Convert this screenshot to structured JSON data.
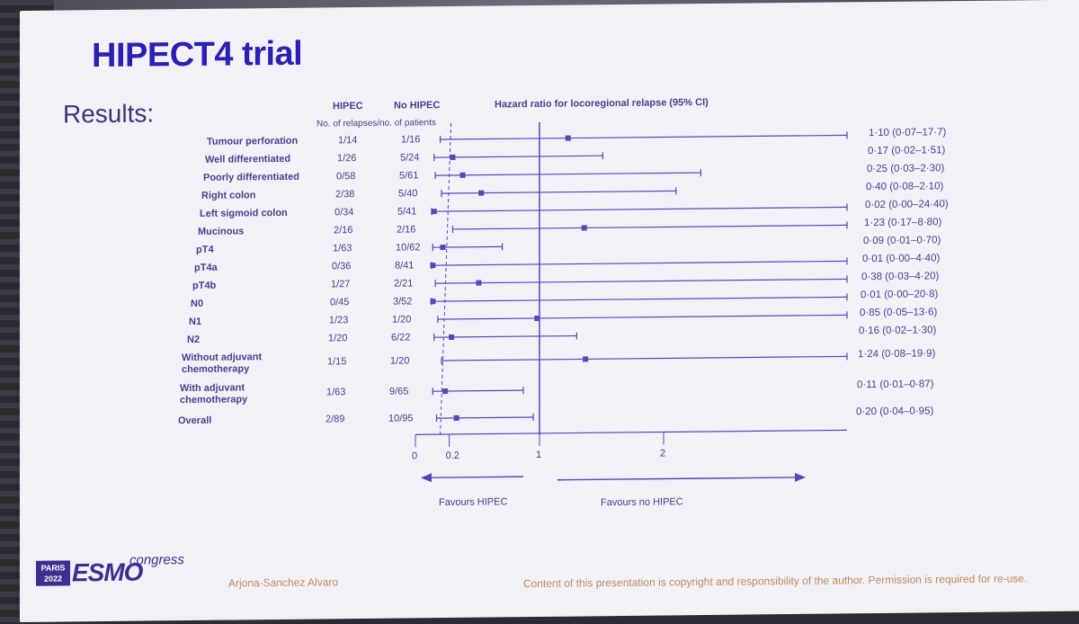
{
  "slide": {
    "title": "HIPECT4 trial",
    "subtitle": "Results:",
    "author": "Arjona-Sanchez Alvaro",
    "copyright": "Content of this presentation is copyright and responsibility of the author. Permission is required for re-use.",
    "logo": {
      "city_year": "PARIS 2022",
      "brand": "ESMO",
      "congress": "congress"
    }
  },
  "table": {
    "col_hipec": "HIPEC",
    "col_no_hipec": "No HIPEC",
    "col_sub": "No. of relapses/no. of patients",
    "col_hr": "Hazard ratio for locoregional relapse (95% CI)"
  },
  "chart_data": {
    "type": "forest",
    "title": "Hazard ratio for locoregional relapse (95% CI)",
    "xlabel": "",
    "x_ticks": [
      "0",
      "0.2",
      "1",
      "2"
    ],
    "xlim": [
      0,
      2.4
    ],
    "reference_line": 1,
    "dashed_line": 0.2,
    "favours_left": "Favours HIPEC",
    "favours_right": "Favours no HIPEC",
    "rows": [
      {
        "label": "Tumour perforation",
        "hipec": "1/14",
        "no_hipec": "1/16",
        "hr": 1.1,
        "lo": 0.07,
        "hi": 17.7,
        "ci_text": "1·10 (0·07–17·7)"
      },
      {
        "label": "Well differentiated",
        "hipec": "1/26",
        "no_hipec": "5/24",
        "hr": 0.17,
        "lo": 0.02,
        "hi": 1.51,
        "ci_text": "0·17 (0·02–1·51)"
      },
      {
        "label": "Poorly differentiated",
        "hipec": "0/58",
        "no_hipec": "5/61",
        "hr": 0.25,
        "lo": 0.03,
        "hi": 2.3,
        "ci_text": "0·25 (0·03–2·30)"
      },
      {
        "label": "Right colon",
        "hipec": "2/38",
        "no_hipec": "5/40",
        "hr": 0.4,
        "lo": 0.08,
        "hi": 2.1,
        "ci_text": "0·40 (0·08–2·10)"
      },
      {
        "label": "Left sigmoid colon",
        "hipec": "0/34",
        "no_hipec": "5/41",
        "hr": 0.02,
        "lo": 0.0,
        "hi": 24.4,
        "ci_text": "0·02 (0·00–24·40)"
      },
      {
        "label": "Mucinous",
        "hipec": "2/16",
        "no_hipec": "2/16",
        "hr": 1.23,
        "lo": 0.17,
        "hi": 8.8,
        "ci_text": "1·23 (0·17–8·80)"
      },
      {
        "label": "pT4",
        "hipec": "1/63",
        "no_hipec": "10/62",
        "hr": 0.09,
        "lo": 0.01,
        "hi": 0.7,
        "ci_text": "0·09 (0·01–0·70)"
      },
      {
        "label": "pT4a",
        "hipec": "0/36",
        "no_hipec": "8/41",
        "hr": 0.01,
        "lo": 0.0,
        "hi": 4.4,
        "ci_text": "0·01 (0·00–4·40)"
      },
      {
        "label": "pT4b",
        "hipec": "1/27",
        "no_hipec": "2/21",
        "hr": 0.38,
        "lo": 0.03,
        "hi": 4.2,
        "ci_text": "0·38 (0·03–4·20)"
      },
      {
        "label": "N0",
        "hipec": "0/45",
        "no_hipec": "3/52",
        "hr": 0.01,
        "lo": 0.0,
        "hi": 20.8,
        "ci_text": "0·01 (0·00–20·8)"
      },
      {
        "label": "N1",
        "hipec": "1/23",
        "no_hipec": "1/20",
        "hr": 0.85,
        "lo": 0.05,
        "hi": 13.6,
        "ci_text": "0·85 (0·05–13·6)"
      },
      {
        "label": "N2",
        "hipec": "1/20",
        "no_hipec": "6/22",
        "hr": 0.16,
        "lo": 0.02,
        "hi": 1.3,
        "ci_text": "0·16 (0·02–1·30)"
      },
      {
        "label": "Without adjuvant chemotherapy",
        "hipec": "1/15",
        "no_hipec": "1/20",
        "hr": 1.24,
        "lo": 0.08,
        "hi": 19.9,
        "ci_text": "1·24 (0·08–19·9)"
      },
      {
        "label": "With adjuvant chemotherapy",
        "hipec": "1/63",
        "no_hipec": "9/65",
        "hr": 0.11,
        "lo": 0.01,
        "hi": 0.87,
        "ci_text": "0·11 (0·01–0·87)"
      },
      {
        "label": "Overall",
        "hipec": "2/89",
        "no_hipec": "10/95",
        "hr": 0.2,
        "lo": 0.04,
        "hi": 0.95,
        "ci_text": "0·20 (0·04–0·95)"
      }
    ],
    "colors": {
      "marks": "#5b46b8",
      "text": "#4a3f8c",
      "title": "#2b1fb6"
    }
  }
}
